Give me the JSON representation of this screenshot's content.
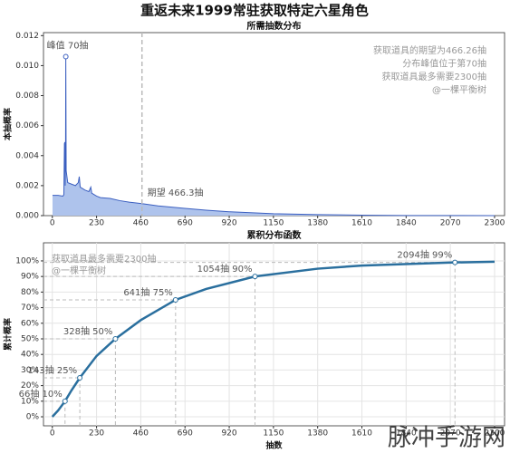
{
  "title": "重返未来1999常驻获取特定六星角色",
  "watermark": "脉冲手游网",
  "chart_data": [
    {
      "type": "area",
      "title": "所需抽数分布",
      "ylabel": "本抽概率",
      "color": "#aec3ec",
      "line_color": "#3b5fc0",
      "grid": false,
      "xlim": [
        -46,
        2352
      ],
      "ylim": [
        0,
        0.0122
      ],
      "xticks": [
        0,
        230,
        460,
        690,
        920,
        1150,
        1380,
        1610,
        1840,
        2070,
        2300
      ],
      "yticks": [
        {
          "value": 0,
          "label": "0.000"
        },
        {
          "value": 0.002,
          "label": "0.002"
        },
        {
          "value": 0.004,
          "label": "0.004"
        },
        {
          "value": 0.006,
          "label": "0.006"
        },
        {
          "value": 0.008,
          "label": "0.008"
        },
        {
          "value": 0.01,
          "label": "0.010"
        },
        {
          "value": 0.012,
          "label": "0.012"
        }
      ],
      "x": [
        1,
        30,
        55,
        60,
        63,
        65,
        67,
        69,
        70,
        72,
        80,
        100,
        120,
        135,
        140,
        145,
        170,
        190,
        200,
        205,
        230,
        250,
        300,
        350,
        400,
        466,
        550,
        690,
        800,
        920,
        1150,
        1380,
        1610,
        1840,
        2070,
        2300
      ],
      "values": [
        0.00135,
        0.00135,
        0.0013,
        0.0014,
        0.0048,
        0.0049,
        0.002,
        0.005,
        0.0106,
        0.003,
        0.0022,
        0.0021,
        0.002,
        0.0022,
        0.0026,
        0.0019,
        0.0017,
        0.0016,
        0.0019,
        0.0015,
        0.0013,
        0.0012,
        0.00115,
        0.001,
        0.0009,
        0.0008,
        0.00065,
        0.00048,
        0.00036,
        0.00026,
        0.00013,
        7e-05,
        3e-05,
        1e-05,
        5e-06,
        2e-06
      ],
      "peak": {
        "x": 70,
        "y": 0.0106,
        "label": "峰值 70抽"
      },
      "expectation": {
        "x": 466.3,
        "label": "期望 466.3抽"
      },
      "notes": [
        "获取道具的期望为466.26抽",
        "分布峰值位于第70抽",
        "获取道具最多需要2300抽",
        "@一棵平衡树"
      ]
    },
    {
      "type": "line",
      "title": "累积分布函数",
      "ylabel": "累计概率",
      "xlabel": "抽数",
      "color": "#2a6f9e",
      "grid": true,
      "xlim": [
        -46,
        2352
      ],
      "ylim": [
        -5.8,
        111.6
      ],
      "xticks": [
        0,
        230,
        460,
        690,
        920,
        1150,
        1380,
        1610,
        1840,
        2070,
        2300
      ],
      "yticks": [
        {
          "value": 0,
          "label": "0%"
        },
        {
          "value": 10,
          "label": "10%"
        },
        {
          "value": 20,
          "label": "20%"
        },
        {
          "value": 30,
          "label": "30%"
        },
        {
          "value": 40,
          "label": "40%"
        },
        {
          "value": 50,
          "label": "50%"
        },
        {
          "value": 60,
          "label": "60%"
        },
        {
          "value": 70,
          "label": "70%"
        },
        {
          "value": 80,
          "label": "80%"
        },
        {
          "value": 90,
          "label": "90%"
        },
        {
          "value": 100,
          "label": "100%"
        }
      ],
      "x": [
        0,
        30,
        66,
        100,
        143,
        230,
        328,
        460,
        641,
        800,
        1054,
        1380,
        1610,
        2094,
        2300
      ],
      "values": [
        0,
        4,
        10,
        17,
        25,
        39,
        50,
        62,
        75,
        82,
        90,
        95,
        97,
        99,
        99.5
      ],
      "annotations": [
        {
          "x": 66,
          "y": 10,
          "label": "66抽 10%"
        },
        {
          "x": 143,
          "y": 25,
          "label": "143抽 25%"
        },
        {
          "x": 328,
          "y": 50,
          "label": "328抽 50%"
        },
        {
          "x": 641,
          "y": 75,
          "label": "641抽 75%"
        },
        {
          "x": 1054,
          "y": 90,
          "label": "1054抽 90%"
        },
        {
          "x": 2094,
          "y": 99,
          "label": "2094抽 99%"
        }
      ],
      "notes": [
        "获取道具最多需要2300抽",
        "@一棵平衡树"
      ]
    }
  ]
}
